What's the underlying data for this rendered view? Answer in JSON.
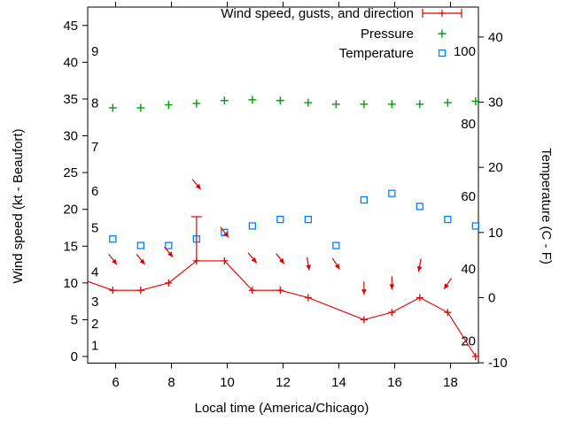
{
  "chart_data": {
    "type": "line",
    "title": "",
    "xlabel": "Local time (America/Chicago)",
    "ylabel_left": "Wind speed (kt - Beaufort)",
    "ylabel_right": "Temperature (C - F)",
    "xlim": [
      5,
      19
    ],
    "ylim_left_kt": [
      -0.9,
      47.5
    ],
    "ylim_right_c": [
      -10.05,
      44.6
    ],
    "grid": false,
    "legend_position": "top-right-inside",
    "x_tick_labels": [
      "6",
      "8",
      "10",
      "12",
      "14",
      "16",
      "18"
    ],
    "x_tick_hours": [
      6,
      8,
      10,
      12,
      14,
      16,
      18
    ],
    "left_tick_labels": [
      "0",
      "5",
      "10",
      "15",
      "20",
      "25",
      "30",
      "35",
      "40",
      "45"
    ],
    "left_tick_kt": [
      0,
      5,
      10,
      15,
      20,
      25,
      30,
      35,
      40,
      45
    ],
    "right_tick_labels": [
      "-10",
      "0",
      "10",
      "20",
      "30",
      "40"
    ],
    "right_tick_c": [
      -10,
      0,
      10,
      20,
      30,
      40
    ],
    "beaufort_inner_labels": [
      {
        "label": "1",
        "kt": 1
      },
      {
        "label": "2",
        "kt": 4
      },
      {
        "label": "3",
        "kt": 7
      },
      {
        "label": "4",
        "kt": 11
      },
      {
        "label": "5",
        "kt": 17
      },
      {
        "label": "6",
        "kt": 22
      },
      {
        "label": "7",
        "kt": 28
      },
      {
        "label": "8",
        "kt": 34
      },
      {
        "label": "9",
        "kt": 41
      }
    ],
    "fahrenheit_inner_labels": [
      {
        "label": "20",
        "c": -6.67
      },
      {
        "label": "40",
        "c": 4.44
      },
      {
        "label": "60",
        "c": 15.56
      },
      {
        "label": "80",
        "c": 26.67
      },
      {
        "label": "100",
        "c": 37.78
      }
    ],
    "colors": {
      "wind": "#e00000",
      "pressure": "#00a000",
      "temperature": "#0080ff",
      "axis": "#000000"
    },
    "legend": [
      {
        "label": "Wind speed, gusts, and direction",
        "marker": "errorbar-line",
        "color": "#e00000"
      },
      {
        "label": "Pressure",
        "marker": "plus",
        "color": "#00a000"
      },
      {
        "label": "Temperature",
        "marker": "open-square",
        "color": "#0080ff"
      }
    ],
    "series": {
      "wind_speed_kt": {
        "name": "Wind speed, gusts, and direction",
        "x_hours": [
          5.0,
          5.9,
          6.9,
          7.9,
          8.9,
          9.9,
          10.9,
          11.9,
          12.9,
          14.9,
          15.9,
          16.9,
          17.9,
          18.9
        ],
        "values": [
          10.2,
          9,
          9,
          10,
          13,
          13,
          9,
          9,
          8,
          5,
          6,
          8,
          6,
          0
        ],
        "edge_point_indexes": [
          0
        ]
      },
      "wind_gusts": [
        {
          "x_hour": 8.9,
          "from_kt": 13,
          "to_kt": 19
        }
      ],
      "wind_direction_arrows": [
        {
          "x_hour": 5.9,
          "center_kt": 13.2,
          "angle_deg_from_down": 38,
          "pointing": "SE"
        },
        {
          "x_hour": 6.9,
          "center_kt": 13.2,
          "angle_deg_from_down": 38,
          "pointing": "SE"
        },
        {
          "x_hour": 7.9,
          "center_kt": 14.2,
          "angle_deg_from_down": 40,
          "pointing": "SE"
        },
        {
          "x_hour": 8.9,
          "center_kt": 23.4,
          "angle_deg_from_down": 40,
          "pointing": "SE"
        },
        {
          "x_hour": 9.9,
          "center_kt": 16.9,
          "angle_deg_from_down": 38,
          "pointing": "SE"
        },
        {
          "x_hour": 10.9,
          "center_kt": 13.4,
          "angle_deg_from_down": 40,
          "pointing": "SE"
        },
        {
          "x_hour": 11.9,
          "center_kt": 13.3,
          "angle_deg_from_down": 38,
          "pointing": "SE"
        },
        {
          "x_hour": 12.9,
          "center_kt": 12.6,
          "angle_deg_from_down": 10,
          "pointing": "S"
        },
        {
          "x_hour": 13.9,
          "center_kt": 12.6,
          "angle_deg_from_down": 33,
          "pointing": "SE"
        },
        {
          "x_hour": 14.9,
          "center_kt": 9.3,
          "angle_deg_from_down": 0,
          "pointing": "S"
        },
        {
          "x_hour": 15.9,
          "center_kt": 10.0,
          "angle_deg_from_down": 0,
          "pointing": "S"
        },
        {
          "x_hour": 16.9,
          "center_kt": 12.4,
          "angle_deg_from_down": -10,
          "pointing": "S"
        },
        {
          "x_hour": 17.9,
          "center_kt": 9.9,
          "angle_deg_from_down": -35,
          "pointing": "SW"
        }
      ],
      "pressure": {
        "name": "Pressure",
        "note": "no pressure axis is drawn; values are plotted positions in left-axis (kt) units",
        "x_hours": [
          5.9,
          6.9,
          7.9,
          8.9,
          9.9,
          10.9,
          11.9,
          12.9,
          13.9,
          14.9,
          15.9,
          16.9,
          17.9,
          18.9
        ],
        "values_plot_kt": [
          33.8,
          33.8,
          34.2,
          34.4,
          34.8,
          34.9,
          34.8,
          34.5,
          34.3,
          34.3,
          34.3,
          34.3,
          34.5,
          34.7
        ]
      },
      "temperature_c": {
        "name": "Temperature",
        "x_hours": [
          5.9,
          6.9,
          7.9,
          8.9,
          9.9,
          10.9,
          11.9,
          12.9,
          13.9,
          14.9,
          15.9,
          16.9,
          17.9,
          18.9
        ],
        "values": [
          9,
          8,
          8,
          9,
          10,
          11,
          12,
          12,
          8,
          15,
          16,
          14,
          12,
          11
        ]
      }
    }
  }
}
